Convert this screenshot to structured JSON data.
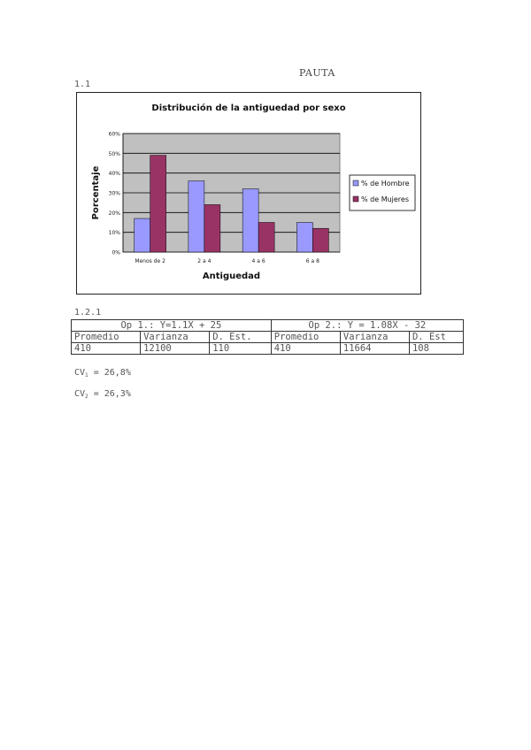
{
  "document": {
    "title": "PAUTA",
    "section_1": "1.1",
    "section_2": "1.2.1",
    "cv1": {
      "label": "CV",
      "sub": "1",
      "value": " = 26,8%"
    },
    "cv2": {
      "label": "CV",
      "sub": "2",
      "value": " = 26,3%"
    }
  },
  "table": {
    "headers": [
      "Op 1.: Y=1.1X + 25",
      "Op 2.: Y = 1.08X - 32"
    ],
    "subheaders": [
      "Promedio",
      "Varianza",
      "D. Est.",
      "Promedio",
      "Varianza",
      "D. Est"
    ],
    "row": [
      "410",
      "12100",
      "110",
      "410",
      "11664",
      "108"
    ]
  },
  "chart_data": {
    "type": "bar",
    "title": "Distribución de la antiguedad por sexo",
    "xlabel": "Antiguedad",
    "ylabel": "Porcentaje",
    "categories": [
      "Menos de 2",
      "2 a 4",
      "4 a 6",
      "6 a 8"
    ],
    "yticks": [
      "0%",
      "10%",
      "20%",
      "30%",
      "40%",
      "50%",
      "60%"
    ],
    "ylim": [
      0,
      60
    ],
    "grid": true,
    "legend_position": "right",
    "series": [
      {
        "name": "% de Hombre",
        "color": "#9999ff",
        "values": [
          17,
          36,
          32,
          15
        ]
      },
      {
        "name": "% de Mujeres",
        "color": "#993366",
        "values": [
          49,
          24,
          15,
          12
        ]
      }
    ],
    "plot_background": "#c0c0c0"
  }
}
